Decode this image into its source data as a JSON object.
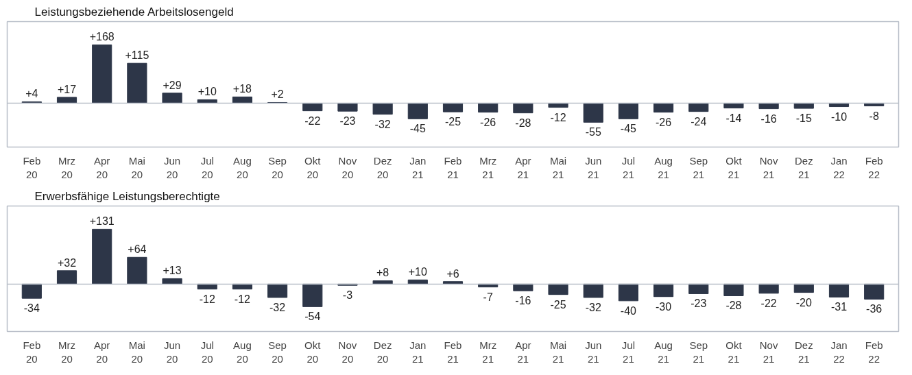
{
  "chart_data": [
    {
      "type": "bar",
      "title": "Leistungsbeziehende Arbeitslosengeld",
      "categories": [
        "Feb 20",
        "Mrz 20",
        "Apr 20",
        "Mai 20",
        "Jun 20",
        "Jul 20",
        "Aug 20",
        "Sep 20",
        "Okt 20",
        "Nov 20",
        "Dez 20",
        "Jan 21",
        "Feb 21",
        "Mrz 21",
        "Apr 21",
        "Mai 21",
        "Jun 21",
        "Jul 21",
        "Aug 21",
        "Sep 21",
        "Okt 21",
        "Nov 21",
        "Dez 21",
        "Jan 22",
        "Feb 22"
      ],
      "values": [
        4,
        17,
        168,
        115,
        29,
        10,
        18,
        2,
        -22,
        -23,
        -32,
        -45,
        -25,
        -26,
        -28,
        -12,
        -55,
        -45,
        -26,
        -24,
        -14,
        -16,
        -15,
        -10,
        -8
      ],
      "value_labels": [
        "+4",
        "+17",
        "+168",
        "+115",
        "+29",
        "+10",
        "+18",
        "+2",
        "-22",
        "-23",
        "-32",
        "-45",
        "-25",
        "-26",
        "-28",
        "-12",
        "-55",
        "-45",
        "-26",
        "-24",
        "-14",
        "-16",
        "-15",
        "-10",
        "-8"
      ],
      "color": "#2d3648"
    },
    {
      "type": "bar",
      "title": "Erwerbsfähige Leistungsberechtigte",
      "categories": [
        "Feb 20",
        "Mrz 20",
        "Apr 20",
        "Mai 20",
        "Jun 20",
        "Jul 20",
        "Aug 20",
        "Sep 20",
        "Okt 20",
        "Nov 20",
        "Dez 20",
        "Jan 21",
        "Feb 21",
        "Mrz 21",
        "Apr 21",
        "Mai 21",
        "Jun 21",
        "Jul 21",
        "Aug 21",
        "Sep 21",
        "Okt 21",
        "Nov 21",
        "Dez 21",
        "Jan 22",
        "Feb 22"
      ],
      "values": [
        -34,
        32,
        131,
        64,
        13,
        -12,
        -12,
        -32,
        -54,
        -3,
        8,
        10,
        6,
        -7,
        -16,
        -25,
        -32,
        -40,
        -30,
        -23,
        -28,
        -22,
        -20,
        -31,
        -36
      ],
      "value_labels": [
        "-34",
        "+32",
        "+131",
        "+64",
        "+13",
        "-12",
        "-12",
        "-32",
        "-54",
        "-3",
        "+8",
        "+10",
        "+6",
        "-7",
        "-16",
        "-25",
        "-32",
        "-40",
        "-30",
        "-23",
        "-28",
        "-22",
        "-20",
        "-31",
        "-36"
      ],
      "color": "#2d3648"
    }
  ]
}
